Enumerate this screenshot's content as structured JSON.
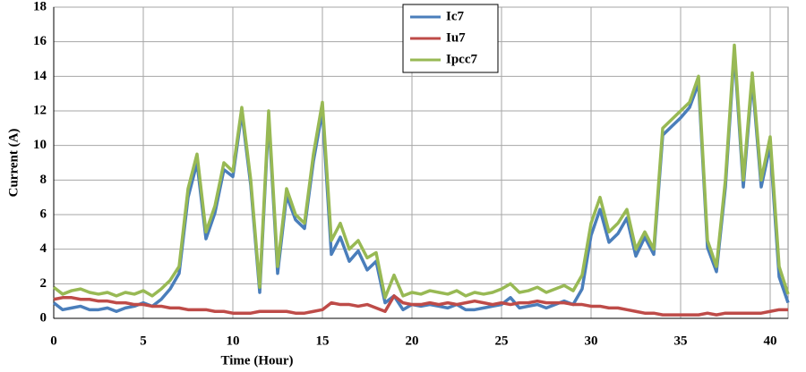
{
  "chart_data": {
    "type": "line",
    "xlabel": "Time (Hour)",
    "ylabel": "Current (A)",
    "x": [
      0,
      0.5,
      1,
      1.5,
      2,
      2.5,
      3,
      3.5,
      4,
      4.5,
      5,
      5.5,
      6,
      6.5,
      7,
      7.5,
      8,
      8.5,
      9,
      9.5,
      10,
      10.5,
      11,
      11.5,
      12,
      12.5,
      13,
      13.5,
      14,
      14.5,
      15,
      15.5,
      16,
      16.5,
      17,
      17.5,
      18,
      18.5,
      19,
      19.5,
      20,
      20.5,
      21,
      21.5,
      22,
      22.5,
      23,
      23.5,
      24,
      24.5,
      25,
      25.5,
      26,
      26.5,
      27,
      27.5,
      28,
      28.5,
      29,
      29.5,
      30,
      30.5,
      31,
      31.5,
      32,
      32.5,
      33,
      33.5,
      34,
      34.5,
      35,
      35.5,
      36,
      36.5,
      37,
      37.5,
      38,
      38.5,
      39,
      39.5,
      40,
      40.5,
      41
    ],
    "series": [
      {
        "name": "Ic7",
        "color": "#4a7ebb",
        "values": [
          0.9,
          0.5,
          0.6,
          0.7,
          0.5,
          0.5,
          0.6,
          0.4,
          0.6,
          0.7,
          0.9,
          0.7,
          1.1,
          1.7,
          2.6,
          7.0,
          9.0,
          4.6,
          6.1,
          8.6,
          8.2,
          11.9,
          7.7,
          1.5,
          11.6,
          2.6,
          7.1,
          5.7,
          5.2,
          9.1,
          12.0,
          3.7,
          4.7,
          3.3,
          3.9,
          2.8,
          3.3,
          0.9,
          1.3,
          0.5,
          0.8,
          0.7,
          0.8,
          0.7,
          0.6,
          0.8,
          0.5,
          0.5,
          0.6,
          0.7,
          0.8,
          1.2,
          0.6,
          0.7,
          0.8,
          0.6,
          0.8,
          1.0,
          0.8,
          1.7,
          4.8,
          6.3,
          4.4,
          4.9,
          5.8,
          3.6,
          4.7,
          3.7,
          10.6,
          11.1,
          11.6,
          12.2,
          13.6,
          4.1,
          2.7,
          7.6,
          15.4,
          7.6,
          13.8,
          7.6,
          10.0,
          2.4,
          0.9
        ]
      },
      {
        "name": "Iu7",
        "color": "#be4b48",
        "values": [
          1.1,
          1.2,
          1.2,
          1.1,
          1.1,
          1.0,
          1.0,
          0.9,
          0.9,
          0.8,
          0.8,
          0.7,
          0.7,
          0.6,
          0.6,
          0.5,
          0.5,
          0.5,
          0.4,
          0.4,
          0.3,
          0.3,
          0.3,
          0.4,
          0.4,
          0.4,
          0.4,
          0.3,
          0.3,
          0.4,
          0.5,
          0.9,
          0.8,
          0.8,
          0.7,
          0.8,
          0.6,
          0.4,
          1.3,
          0.9,
          0.8,
          0.8,
          0.9,
          0.8,
          0.9,
          0.8,
          0.9,
          1.0,
          0.9,
          0.8,
          0.9,
          0.8,
          0.9,
          0.9,
          1.0,
          0.9,
          0.9,
          0.9,
          0.8,
          0.8,
          0.7,
          0.7,
          0.6,
          0.6,
          0.5,
          0.4,
          0.3,
          0.3,
          0.2,
          0.2,
          0.2,
          0.2,
          0.2,
          0.3,
          0.2,
          0.3,
          0.3,
          0.3,
          0.3,
          0.3,
          0.4,
          0.5,
          0.5
        ]
      },
      {
        "name": "Ipcc7",
        "color": "#98b954",
        "values": [
          1.8,
          1.4,
          1.6,
          1.7,
          1.5,
          1.4,
          1.5,
          1.3,
          1.5,
          1.4,
          1.6,
          1.3,
          1.7,
          2.2,
          3.0,
          7.5,
          9.5,
          5.0,
          6.5,
          9.0,
          8.5,
          12.2,
          8.0,
          1.8,
          12.0,
          3.0,
          7.5,
          6.0,
          5.5,
          9.5,
          12.5,
          4.5,
          5.5,
          4.0,
          4.5,
          3.5,
          3.8,
          1.2,
          2.5,
          1.3,
          1.5,
          1.4,
          1.6,
          1.5,
          1.4,
          1.6,
          1.3,
          1.5,
          1.4,
          1.5,
          1.7,
          2.0,
          1.5,
          1.6,
          1.8,
          1.5,
          1.7,
          1.9,
          1.6,
          2.5,
          5.5,
          7.0,
          5.0,
          5.5,
          6.3,
          4.0,
          5.0,
          4.0,
          11.0,
          11.5,
          12.0,
          12.5,
          14.0,
          4.5,
          3.0,
          8.0,
          15.8,
          8.0,
          14.2,
          8.0,
          10.5,
          3.0,
          1.4
        ]
      }
    ],
    "xlim": [
      0,
      41
    ],
    "xticks": [
      0,
      5,
      10,
      15,
      20,
      25,
      30,
      35,
      40
    ],
    "ylim": [
      0,
      18
    ],
    "yticks": [
      0,
      2,
      4,
      6,
      8,
      10,
      12,
      14,
      16,
      18
    ],
    "grid": true,
    "legend": "top"
  }
}
